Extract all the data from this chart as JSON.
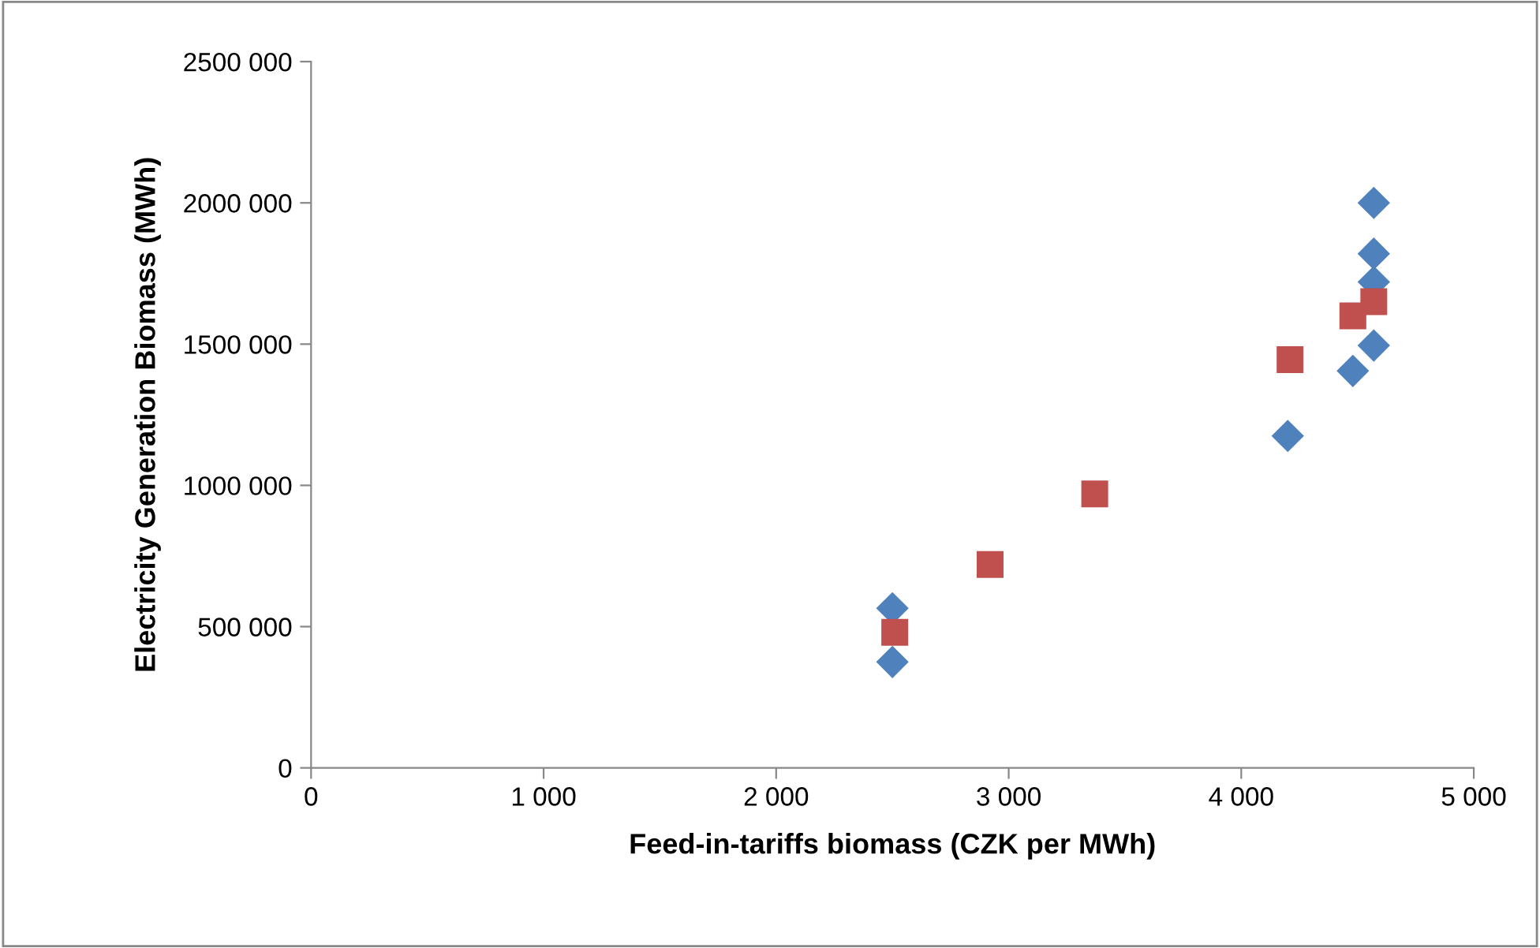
{
  "chart_data": {
    "type": "scatter",
    "xlabel": "Feed-in-tariffs biomass (CZK per MWh)",
    "ylabel": "Electricity Generation Biomass (MWh)",
    "xlim": [
      0,
      5000
    ],
    "ylim": [
      0,
      2500000
    ],
    "xticks": [
      0,
      {
        "value": 1000,
        "label": "1 000"
      },
      {
        "value": 2000,
        "label": "2 000"
      },
      {
        "value": 3000,
        "label": "3 000"
      },
      {
        "value": 4000,
        "label": "4 000"
      },
      {
        "value": 5000,
        "label": "5 000"
      }
    ],
    "yticks": [
      0,
      {
        "value": 500000,
        "label": "500 000"
      },
      {
        "value": 1000000,
        "label": "1000 000"
      },
      {
        "value": 1500000,
        "label": "1500 000"
      },
      {
        "value": 2000000,
        "label": "2000 000"
      },
      {
        "value": 2500000,
        "label": "2500 000"
      }
    ],
    "grid": false,
    "legend": false,
    "series": [
      {
        "color": "#4f81bd",
        "marker": "diamond",
        "x": [
          2500,
          2500,
          2920,
          3360,
          4200,
          4480,
          4570,
          4570,
          4570,
          4570
        ],
        "values": [
          565000,
          375000,
          null,
          null,
          1175000,
          1405000,
          2000000,
          1820000,
          1720000,
          1495000
        ]
      },
      {
        "color": "#c0504d",
        "marker": "square",
        "x": [
          2510,
          2920,
          3370,
          4210,
          4480,
          4570
        ],
        "values": [
          480000,
          720000,
          970000,
          1445000,
          1600000,
          1650000
        ]
      }
    ]
  }
}
